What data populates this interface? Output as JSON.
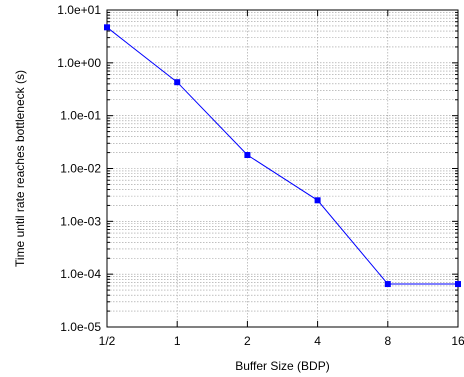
{
  "chart_data": {
    "type": "line",
    "xlabel": "Buffer Size (BDP)",
    "ylabel": "Time until rate reaches bottleneck (s)",
    "x_scale": "log2",
    "y_scale": "log10",
    "xlim": [
      0.5,
      16
    ],
    "ylim": [
      1e-05,
      10
    ],
    "x_ticks": [
      {
        "value": 0.5,
        "label": "1/2"
      },
      {
        "value": 1,
        "label": "1"
      },
      {
        "value": 2,
        "label": "2"
      },
      {
        "value": 4,
        "label": "4"
      },
      {
        "value": 8,
        "label": "8"
      },
      {
        "value": 16,
        "label": "16"
      }
    ],
    "y_ticks": [
      {
        "value": 10,
        "label": "1.0e+01"
      },
      {
        "value": 1,
        "label": "1.0e+00"
      },
      {
        "value": 0.1,
        "label": "1.0e-01"
      },
      {
        "value": 0.01,
        "label": "1.0e-02"
      },
      {
        "value": 0.001,
        "label": "1.0e-03"
      },
      {
        "value": 0.0001,
        "label": "1.0e-04"
      },
      {
        "value": 1e-05,
        "label": "1.0e-05"
      }
    ],
    "grid": true,
    "series": [
      {
        "x": [
          0.5,
          1,
          2,
          4,
          8,
          16
        ],
        "y": [
          4.7,
          0.43,
          0.018,
          0.0025,
          6.5e-05,
          6.5e-05
        ],
        "color": "#0000ff",
        "marker": "square"
      }
    ]
  }
}
